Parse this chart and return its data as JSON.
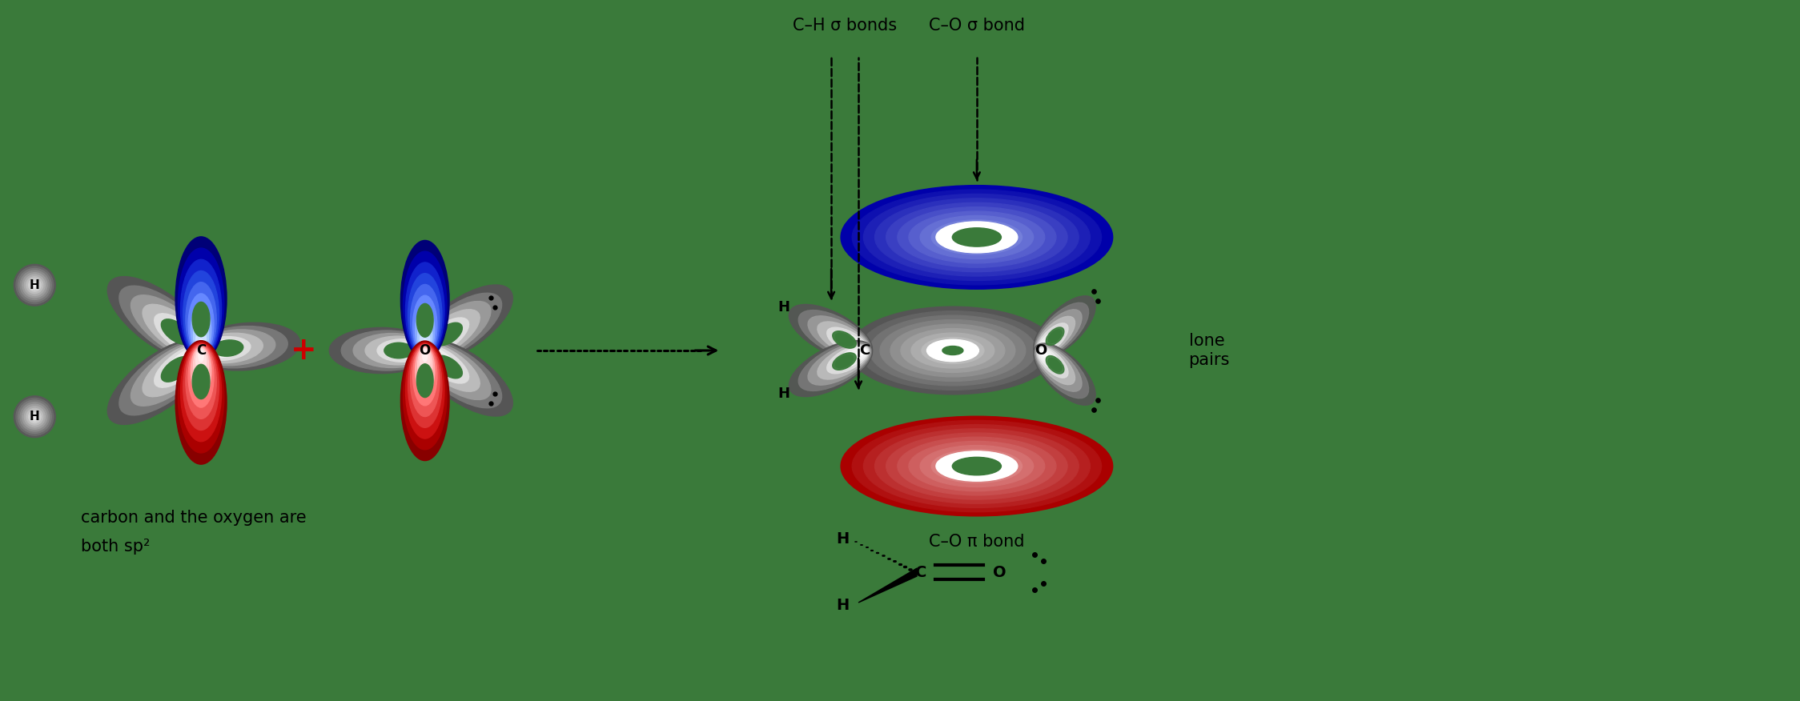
{
  "bg_color": "#3a7a3a",
  "text_color": "#000000",
  "label_ch": "C–H σ bonds",
  "label_co_sigma": "C–O σ bond",
  "label_co_pi": "C–O π bond",
  "label_lone": "lone\npairs",
  "caption": "carbon and the oxygen are\nboth sp²",
  "C1x": 2.5,
  "C1y": 4.38,
  "O1x": 5.3,
  "O1y": 4.38,
  "Cpx": 10.8,
  "Cpy": 4.38,
  "Opx": 13.0,
  "Opy": 4.38,
  "H1x": 0.42,
  "H1y": 5.2,
  "H2x": 0.42,
  "H2y": 3.55
}
